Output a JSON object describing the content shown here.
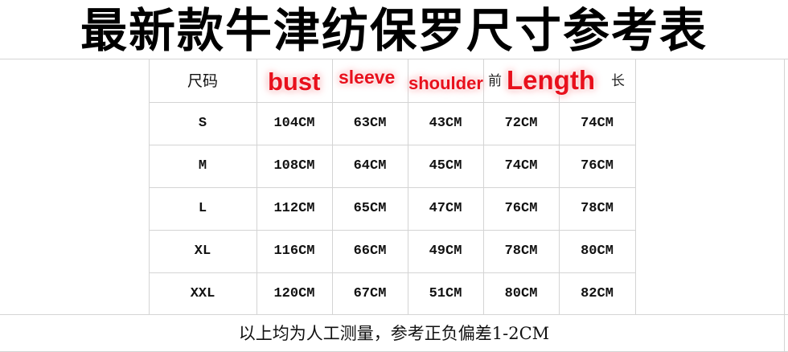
{
  "title": "最新款牛津纺保罗尺寸参考表",
  "table": {
    "headers": [
      "尺码",
      "bust",
      "sleeve",
      "shoulder",
      "Length"
    ],
    "header_fragments": [
      "前",
      "长"
    ],
    "rows": [
      [
        "S",
        "104CM",
        "63CM",
        "43CM",
        "72CM",
        "74CM"
      ],
      [
        "M",
        "108CM",
        "64CM",
        "45CM",
        "74CM",
        "76CM"
      ],
      [
        "L",
        "112CM",
        "65CM",
        "47CM",
        "76CM",
        "78CM"
      ],
      [
        "XL",
        "116CM",
        "66CM",
        "49CM",
        "78CM",
        "80CM"
      ],
      [
        "XXL",
        "120CM",
        "67CM",
        "51CM",
        "80CM",
        "82CM"
      ]
    ]
  },
  "note": "以上均为人工测量，参考正负偏差1-2CM",
  "colors": {
    "overlay_text": "#e8101c",
    "grid": "#d4d4d4"
  }
}
